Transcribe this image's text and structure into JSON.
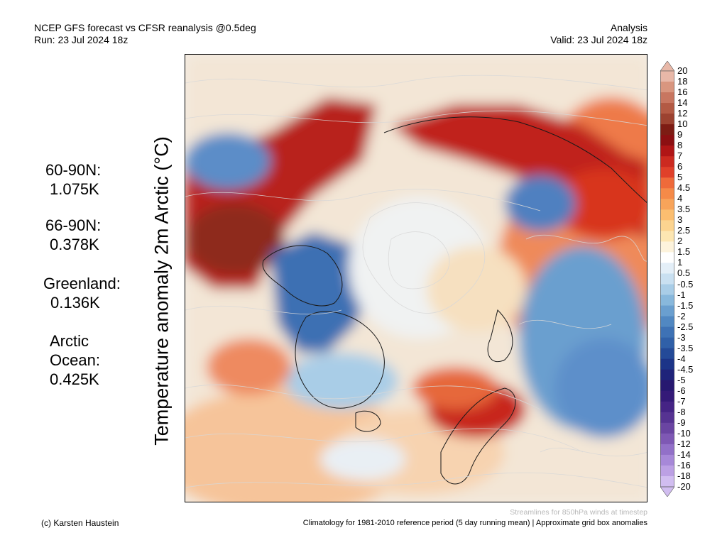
{
  "header": {
    "title": "NCEP GFS forecast vs CFSR reanalysis @0.5deg",
    "run": "Run: 23 Jul 2024 18z",
    "mode": "Analysis",
    "valid": "Valid: 23 Jul 2024 18z"
  },
  "y_title": "Temperature anomaly 2m Arctic (°C)",
  "stats": [
    {
      "label": "60-90N:",
      "value": "1.075K"
    },
    {
      "label": "66-90N:",
      "value": "0.378K"
    },
    {
      "label": "Greenland:",
      "value": "0.136K"
    },
    {
      "label": "Arctic",
      "label2": "Ocean:",
      "value": "0.425K"
    }
  ],
  "colorbar": {
    "ticks": [
      "20",
      "18",
      "16",
      "14",
      "12",
      "10",
      "9",
      "8",
      "7",
      "6",
      "5",
      "4.5",
      "4",
      "3.5",
      "3",
      "2.5",
      "2",
      "1.5",
      "1",
      "0.5",
      "-0.5",
      "-1",
      "-1.5",
      "-2",
      "-2.5",
      "-3",
      "-3.5",
      "-4",
      "-4.5",
      "-5",
      "-6",
      "-7",
      "-8",
      "-9",
      "-10",
      "-12",
      "-14",
      "-16",
      "-18",
      "-20"
    ],
    "colors": [
      "#e8b8a8",
      "#d9967f",
      "#c87660",
      "#b35a44",
      "#9c4230",
      "#7d1c14",
      "#8c0f12",
      "#b01516",
      "#cc2a20",
      "#e0402a",
      "#ef6a3a",
      "#f58a48",
      "#f8a45a",
      "#fbbe70",
      "#fcd490",
      "#fde6b2",
      "#fdf3dc",
      "#ffffff",
      "#e4eff8",
      "#c9e0f1",
      "#a9cde7",
      "#88b8dc",
      "#6a9fcf",
      "#5188c2",
      "#3e72b5",
      "#3060a8",
      "#244a98",
      "#1c3488",
      "#1f237a",
      "#271870",
      "#341a78",
      "#452485",
      "#563392",
      "#6a45a2",
      "#7e58b4",
      "#9270c8",
      "#a788d8",
      "#bca0e4",
      "#d1bdf0"
    ]
  },
  "footer": {
    "credit": "(c) Karsten Haustein",
    "climatology": "Climatology for 1981-2010 reference period (5 day running mean) | Approximate grid box anomalies",
    "streamlines": "Streamlines for 850hPa winds at timestep"
  }
}
